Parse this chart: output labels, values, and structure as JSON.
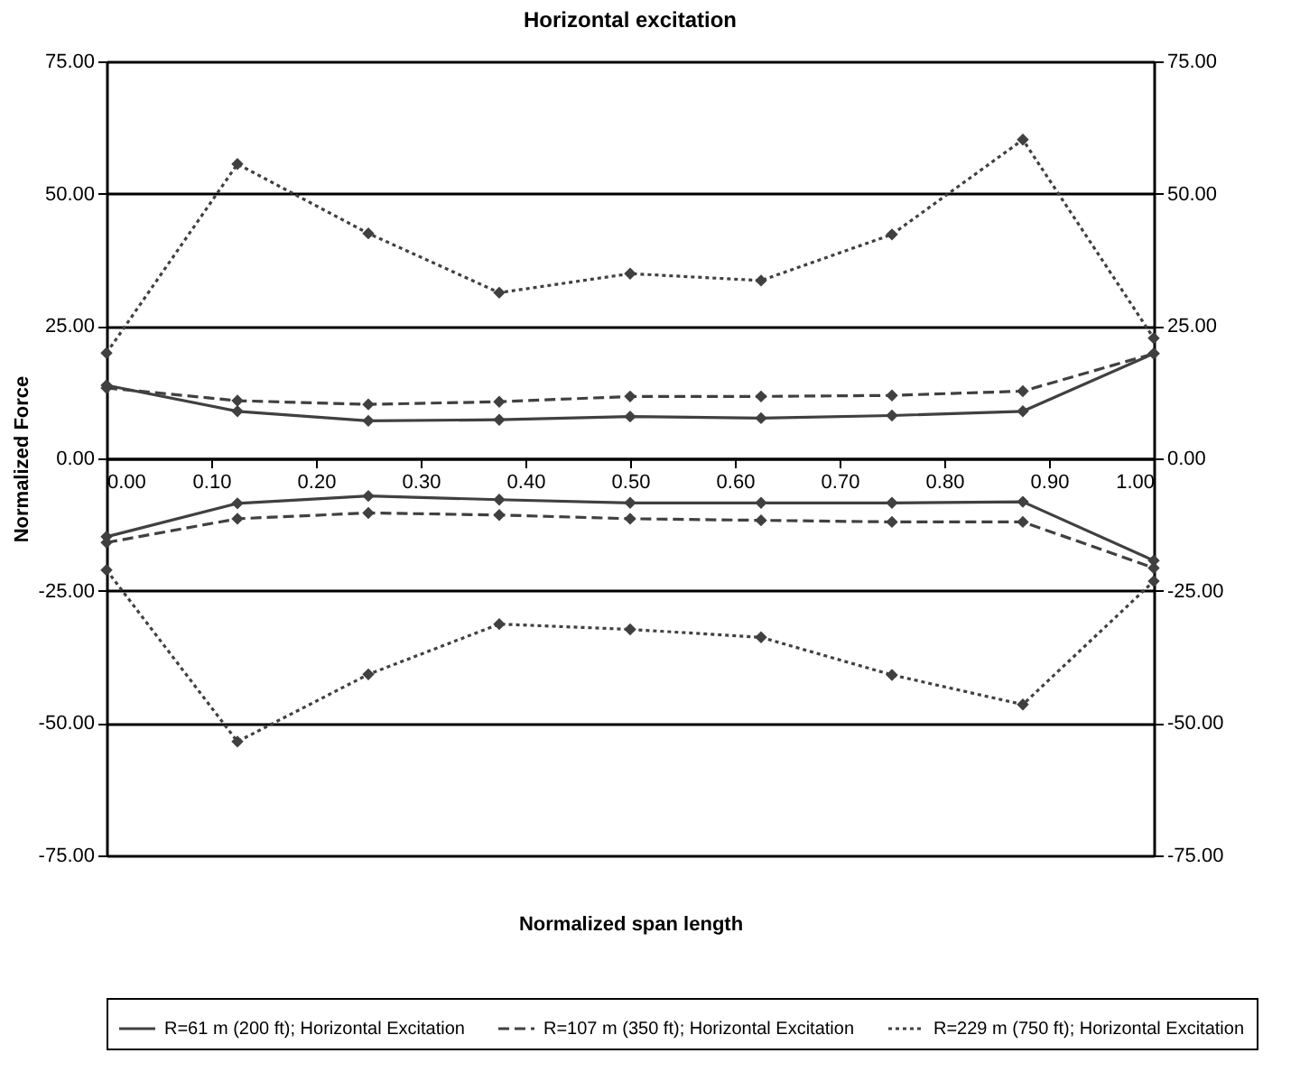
{
  "chart_data": {
    "type": "line",
    "title": "Horizontal excitation",
    "xlabel": "Normalized span length",
    "ylabel": "Normalized Force",
    "x": [
      0,
      0.125,
      0.25,
      0.375,
      0.5,
      0.625,
      0.75,
      0.875,
      1
    ],
    "series": [
      {
        "name": "R=61 m (200 ft); Horizontal Excitation",
        "color": "#404040",
        "line_style": "solid",
        "values": [
          13.8,
          8.9,
          7.1,
          7.3,
          7.9,
          7.6,
          8.1,
          8.9,
          19.8
        ]
      },
      {
        "name": "R=107 m (350 ft); Horizontal Excitation",
        "color": "#404040",
        "line_style": "dashed",
        "values": [
          13.3,
          10.9,
          10.2,
          10.7,
          11.7,
          11.7,
          11.9,
          12.7,
          19.8
        ]
      },
      {
        "name": "R=229 m (750 ft); Horizontal Excitation",
        "color": "#404040",
        "line_style": "dotted",
        "values": [
          19.9,
          55.6,
          42.5,
          31.3,
          34.9,
          33.6,
          42.3,
          60.2,
          22.7
        ]
      },
      {
        "color": "#404040",
        "line_style": "solid",
        "values": [
          -14.8,
          -8.5,
          -7.1,
          -7.8,
          -8.4,
          -8.4,
          -8.4,
          -8.2,
          -19.3
        ]
      },
      {
        "color": "#404040",
        "line_style": "dashed",
        "values": [
          -15.9,
          -11.4,
          -10.3,
          -10.7,
          -11.4,
          -11.7,
          -12,
          -12,
          -20.7
        ]
      },
      {
        "color": "#404040",
        "line_style": "dotted",
        "values": [
          -21.1,
          -53.5,
          -40.8,
          -31.3,
          -32.3,
          -33.8,
          -40.9,
          -46.5,
          -23.2
        ]
      }
    ],
    "xlim": [
      0,
      1
    ],
    "xticks": [
      {
        "value": 0,
        "label": "0.00"
      },
      {
        "value": 0.1,
        "label": "0.10"
      },
      {
        "value": 0.2,
        "label": "0.20"
      },
      {
        "value": 0.3,
        "label": "0.30"
      },
      {
        "value": 0.4,
        "label": "0.40"
      },
      {
        "value": 0.5,
        "label": "0.50"
      },
      {
        "value": 0.6,
        "label": "0.60"
      },
      {
        "value": 0.7,
        "label": "0.70"
      },
      {
        "value": 0.8,
        "label": "0.80"
      },
      {
        "value": 0.9,
        "label": "0.90"
      },
      {
        "value": 1,
        "label": "1.00"
      }
    ],
    "ylim": [
      -75,
      75
    ],
    "yticks": [
      {
        "value": -75,
        "label": "-75.00"
      },
      {
        "value": -50,
        "label": "-50.00"
      },
      {
        "value": -25,
        "label": "-25.00"
      },
      {
        "value": 0,
        "label": "0.00"
      },
      {
        "value": 25,
        "label": "25.00"
      },
      {
        "value": 50,
        "label": "50.00"
      },
      {
        "value": 75,
        "label": "75.00"
      }
    ],
    "y2lim": [
      -75,
      75
    ],
    "y2ticks": [
      {
        "value": -75,
        "label": "-75.00"
      },
      {
        "value": -50,
        "label": "-50.00"
      },
      {
        "value": -25,
        "label": "-25.00"
      },
      {
        "value": 0,
        "label": "0.00"
      },
      {
        "value": 25,
        "label": "25.00"
      },
      {
        "value": 50,
        "label": "50.00"
      },
      {
        "value": 75,
        "label": "75.00"
      }
    ],
    "grid": "y",
    "legend": "bottom",
    "marker": "diamond"
  }
}
